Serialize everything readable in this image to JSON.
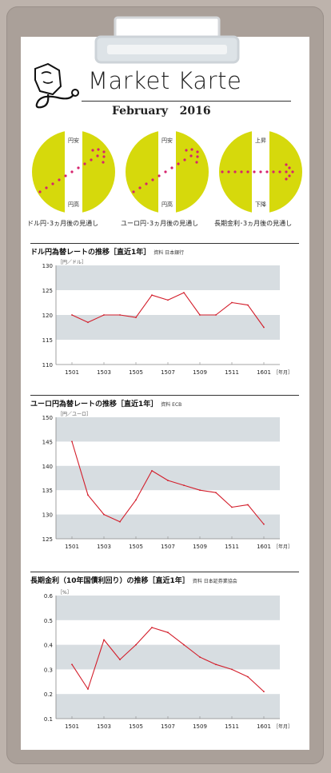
{
  "header": {
    "title": "Market Karte",
    "month": "February",
    "year": "2016"
  },
  "colors": {
    "gauge_fill": "#d6d90c",
    "arrow": "#d6246e",
    "band": "#d7dde1",
    "line": "#d31d2a"
  },
  "gauges": [
    {
      "caption": "ドル円･3ヵ月後の見通し",
      "top_label": "円安",
      "bottom_label": "円高",
      "direction": "up"
    },
    {
      "caption": "ユーロ円･3ヵ月後の見通し",
      "top_label": "円安",
      "bottom_label": "円高",
      "direction": "up"
    },
    {
      "caption": "長期金利･3ヵ月後の見通し",
      "top_label": "上昇",
      "bottom_label": "下降",
      "direction": "flat"
    }
  ],
  "chart_data": [
    {
      "type": "line",
      "title": "ドル円為替レートの推移［直近1年］",
      "source": "資料 日本銀行",
      "unit": "［円／ドル］",
      "x_unit": "［年月］",
      "ylim": [
        110,
        130
      ],
      "yticks": [
        "130",
        "125",
        "120",
        "115",
        "110"
      ],
      "xticks": [
        "1501",
        "1503",
        "1505",
        "1507",
        "1509",
        "1511",
        "1601"
      ],
      "x": [
        "1501",
        "1502",
        "1503",
        "1504",
        "1505",
        "1506",
        "1507",
        "1508",
        "1509",
        "1510",
        "1511",
        "1512",
        "1601"
      ],
      "values": [
        120.0,
        118.5,
        120.0,
        120.0,
        119.5,
        124.0,
        123.0,
        124.5,
        120.0,
        120.0,
        122.5,
        122.0,
        117.5
      ]
    },
    {
      "type": "line",
      "title": "ユーロ円為替レートの推移［直近1年］",
      "source": "資料 ECB",
      "unit": "［円／ユーロ］",
      "x_unit": "［年月］",
      "ylim": [
        125,
        150
      ],
      "yticks": [
        "150",
        "145",
        "140",
        "135",
        "130",
        "125"
      ],
      "xticks": [
        "1501",
        "1503",
        "1505",
        "1507",
        "1509",
        "1511",
        "1601"
      ],
      "x": [
        "1501",
        "1502",
        "1503",
        "1504",
        "1505",
        "1506",
        "1507",
        "1508",
        "1509",
        "1510",
        "1511",
        "1512",
        "1601"
      ],
      "values": [
        145.0,
        134.0,
        130.0,
        128.5,
        133.0,
        139.0,
        137.0,
        136.0,
        135.0,
        134.5,
        131.5,
        132.0,
        128.0
      ]
    },
    {
      "type": "line",
      "title": "長期金利（10年国債利回り）の推移［直近1年］",
      "source": "資料 日本証券業協会",
      "unit": "［%］",
      "x_unit": "［年月］",
      "ylim": [
        0.1,
        0.6
      ],
      "yticks": [
        "0.6",
        "0.5",
        "0.4",
        "0.3",
        "0.2",
        "0.1"
      ],
      "xticks": [
        "1501",
        "1503",
        "1505",
        "1507",
        "1509",
        "1511",
        "1601"
      ],
      "x": [
        "1501",
        "1502",
        "1503",
        "1504",
        "1505",
        "1506",
        "1507",
        "1508",
        "1509",
        "1510",
        "1511",
        "1512",
        "1601"
      ],
      "values": [
        0.32,
        0.22,
        0.42,
        0.34,
        0.4,
        0.47,
        0.45,
        0.4,
        0.35,
        0.32,
        0.3,
        0.27,
        0.21
      ]
    }
  ]
}
